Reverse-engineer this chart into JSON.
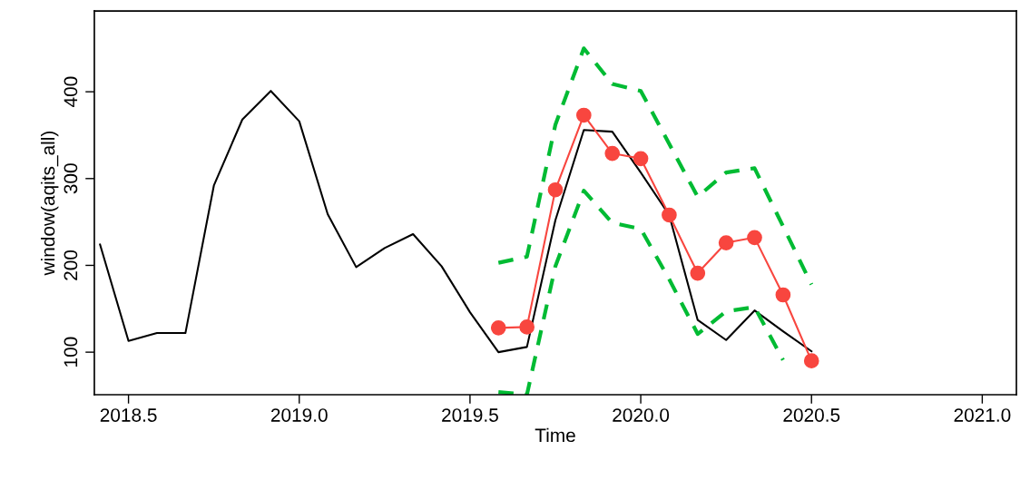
{
  "chart_data": {
    "type": "line",
    "xlabel": "Time",
    "ylabel": "window(aqits_all)",
    "xlim": [
      2018.4,
      2021.1
    ],
    "ylim": [
      51,
      493
    ],
    "xticks": [
      {
        "value": 2018.5,
        "label": "2018.5"
      },
      {
        "value": 2019.0,
        "label": "2019.0"
      },
      {
        "value": 2019.5,
        "label": "2019.5"
      },
      {
        "value": 2020.0,
        "label": "2020.0"
      },
      {
        "value": 2020.5,
        "label": "2020.5"
      },
      {
        "value": 2021.0,
        "label": "2021.0"
      }
    ],
    "yticks": [
      100,
      200,
      300,
      400
    ],
    "grid": false,
    "series": [
      {
        "color": "#000000",
        "line_style": "solid",
        "marker": "none",
        "x": [
          2018.4167,
          2018.5,
          2018.5833,
          2018.6667,
          2018.75,
          2018.8333,
          2018.9167,
          2019.0,
          2019.0833,
          2019.1667,
          2019.25,
          2019.3333,
          2019.4167,
          2019.5,
          2019.5833,
          2019.6667,
          2019.75,
          2019.8333,
          2019.9167,
          2020.0,
          2020.0833,
          2020.1667,
          2020.25,
          2020.3333,
          2020.4167,
          2020.5
        ],
        "values": [
          224,
          113,
          122,
          122,
          292,
          368,
          401,
          366,
          259,
          198,
          220,
          236,
          199,
          146,
          100,
          106,
          252,
          356,
          354,
          307,
          258,
          137,
          114,
          148,
          124,
          101
        ]
      },
      {
        "color": "#f8463f",
        "line_style": "solid",
        "marker": "circle",
        "x": [
          2019.5833,
          2019.6667,
          2019.75,
          2019.8333,
          2019.9167,
          2020.0,
          2020.0833,
          2020.1667,
          2020.25,
          2020.3333,
          2020.4167,
          2020.5
        ],
        "values": [
          128,
          129,
          287,
          373,
          329,
          323,
          258,
          191,
          226,
          232,
          166,
          90
        ]
      },
      {
        "color": "#00bb33",
        "line_style": "dashed",
        "marker": "none",
        "x": [
          2019.5833,
          2019.6667,
          2019.75,
          2019.8333,
          2019.9167,
          2020.0,
          2020.0833,
          2020.1667,
          2020.25,
          2020.3333,
          2020.4167,
          2020.5
        ],
        "values": [
          203,
          210,
          362,
          450,
          409,
          401,
          340,
          279,
          307,
          312,
          245,
          178
        ]
      },
      {
        "color": "#00bb33",
        "line_style": "dashed",
        "marker": "none",
        "x": [
          2019.5833,
          2019.6667,
          2019.75,
          2019.8333,
          2019.9167,
          2020.0,
          2020.0833,
          2020.1667,
          2020.25,
          2020.3333,
          2020.4167
        ],
        "values": [
          54,
          51,
          199,
          286,
          249,
          242,
          184,
          121,
          147,
          152,
          91
        ]
      }
    ]
  }
}
